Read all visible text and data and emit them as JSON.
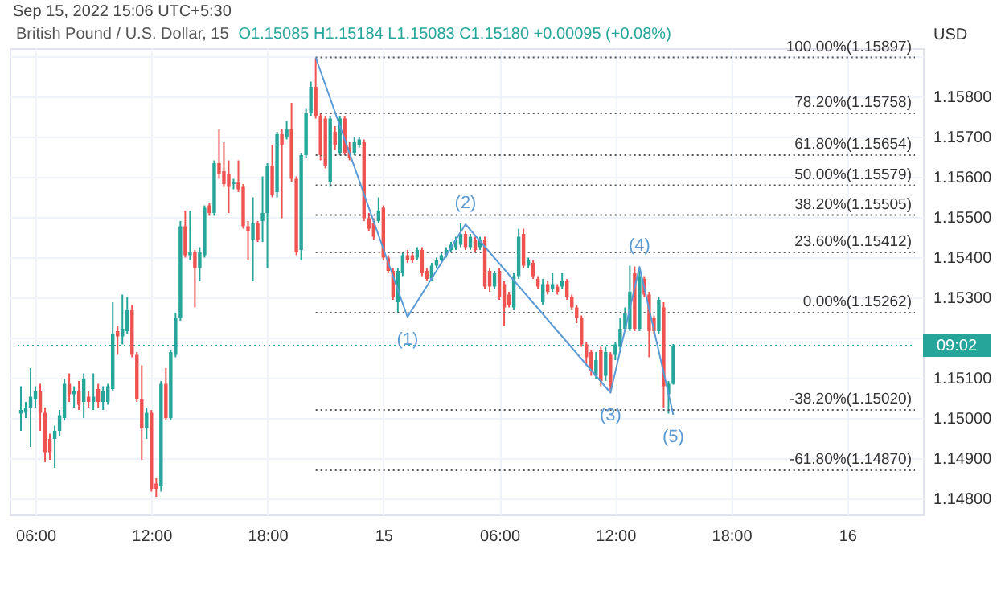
{
  "chart_data": {
    "type": "candlestick",
    "title": "British Pound / U.S. Dollar, 15",
    "subtitle": "O1.15085 H1.15184 L1.15083 C1.15180 +0.00095 (+0.08%)",
    "ylabel": "USD",
    "annotations": [
      "Sep 15, 2022 15:06 UTC+5:30",
      "09:02",
      {
        "text": "(1)",
        "x": "2022-09-15T01:15",
        "y": 1.15251
      },
      {
        "text": "(2)",
        "x": "2022-09-15T04:15",
        "y": 1.15482
      },
      {
        "text": "(3)",
        "x": "2022-09-15T11:45",
        "y": 1.15063
      },
      {
        "text": "(4)",
        "x": "2022-09-15T13:15",
        "y": 1.15376
      },
      {
        "text": "(5)",
        "x": "2022-09-15T15:00",
        "y": 1.15008
      }
    ],
    "x": [
      "2022-09-14T05:15",
      "2022-09-14T05:30",
      "2022-09-14T05:45",
      "2022-09-14T06:00",
      "2022-09-14T06:15",
      "2022-09-14T06:30",
      "2022-09-14T06:45",
      "2022-09-14T07:00",
      "2022-09-14T07:15",
      "2022-09-14T07:30",
      "2022-09-14T07:45",
      "2022-09-14T08:00",
      "2022-09-14T08:15",
      "2022-09-14T08:30",
      "2022-09-14T08:45",
      "2022-09-14T09:00",
      "2022-09-14T09:15",
      "2022-09-14T09:30",
      "2022-09-14T09:45",
      "2022-09-14T10:00",
      "2022-09-14T10:15",
      "2022-09-14T10:30",
      "2022-09-14T10:45",
      "2022-09-14T11:00",
      "2022-09-14T11:15",
      "2022-09-14T11:30",
      "2022-09-14T11:45",
      "2022-09-14T12:00",
      "2022-09-14T12:15",
      "2022-09-14T12:30",
      "2022-09-14T12:45",
      "2022-09-14T13:00",
      "2022-09-14T13:15",
      "2022-09-14T13:30",
      "2022-09-14T13:45",
      "2022-09-14T14:00",
      "2022-09-14T14:15",
      "2022-09-14T14:30",
      "2022-09-14T14:45",
      "2022-09-14T15:00",
      "2022-09-14T15:15",
      "2022-09-14T15:30",
      "2022-09-14T15:45",
      "2022-09-14T16:00",
      "2022-09-14T16:15",
      "2022-09-14T16:30",
      "2022-09-14T16:45",
      "2022-09-14T17:00",
      "2022-09-14T17:15",
      "2022-09-14T17:30",
      "2022-09-14T17:45",
      "2022-09-14T18:00",
      "2022-09-14T18:15",
      "2022-09-14T18:30",
      "2022-09-14T18:45",
      "2022-09-14T19:00",
      "2022-09-14T19:15",
      "2022-09-14T19:30",
      "2022-09-14T19:45",
      "2022-09-14T20:00",
      "2022-09-14T20:15",
      "2022-09-14T20:30",
      "2022-09-14T20:45",
      "2022-09-14T21:00",
      "2022-09-14T21:15",
      "2022-09-14T21:30",
      "2022-09-14T21:45",
      "2022-09-14T22:00",
      "2022-09-14T22:15",
      "2022-09-14T22:30",
      "2022-09-14T22:45",
      "2022-09-14T23:00",
      "2022-09-14T23:15",
      "2022-09-14T23:30",
      "2022-09-14T23:45",
      "2022-09-15T00:00",
      "2022-09-15T00:15",
      "2022-09-15T00:30",
      "2022-09-15T00:45",
      "2022-09-15T01:00",
      "2022-09-15T01:15",
      "2022-09-15T01:30",
      "2022-09-15T01:45",
      "2022-09-15T02:00",
      "2022-09-15T02:15",
      "2022-09-15T02:30",
      "2022-09-15T02:45",
      "2022-09-15T03:00",
      "2022-09-15T03:15",
      "2022-09-15T03:30",
      "2022-09-15T03:45",
      "2022-09-15T04:00",
      "2022-09-15T04:15",
      "2022-09-15T04:30",
      "2022-09-15T04:45",
      "2022-09-15T05:00",
      "2022-09-15T05:15",
      "2022-09-15T05:30",
      "2022-09-15T05:45",
      "2022-09-15T06:00",
      "2022-09-15T06:15",
      "2022-09-15T06:30",
      "2022-09-15T06:45",
      "2022-09-15T07:00",
      "2022-09-15T07:15",
      "2022-09-15T07:30",
      "2022-09-15T07:45",
      "2022-09-15T08:00",
      "2022-09-15T08:15",
      "2022-09-15T08:30",
      "2022-09-15T08:45",
      "2022-09-15T09:00",
      "2022-09-15T09:15",
      "2022-09-15T09:30",
      "2022-09-15T09:45",
      "2022-09-15T10:00",
      "2022-09-15T10:15",
      "2022-09-15T10:30",
      "2022-09-15T10:45",
      "2022-09-15T11:00",
      "2022-09-15T11:15",
      "2022-09-15T11:30",
      "2022-09-15T11:45",
      "2022-09-15T12:00",
      "2022-09-15T12:15",
      "2022-09-15T12:30",
      "2022-09-15T12:45",
      "2022-09-15T13:00",
      "2022-09-15T13:15",
      "2022-09-15T13:30",
      "2022-09-15T13:45",
      "2022-09-15T14:00",
      "2022-09-15T14:15",
      "2022-09-15T14:30",
      "2022-09-15T14:45",
      "2022-09-15T15:00"
    ],
    "ohlc": [
      [
        1.15011,
        1.15079,
        1.14968,
        1.1502
      ],
      [
        1.15013,
        1.1504,
        1.15,
        1.15026
      ],
      [
        1.15026,
        1.15124,
        1.14928,
        1.15053
      ],
      [
        1.15046,
        1.15079,
        1.15026,
        1.15066
      ],
      [
        1.15066,
        1.15085,
        1.14968,
        1.15013
      ],
      [
        1.15013,
        1.15026,
        1.1489,
        1.14915
      ],
      [
        1.14948,
        1.14961,
        1.14896,
        1.14915
      ],
      [
        1.14948,
        1.14981,
        1.14876,
        1.14968
      ],
      [
        1.14968,
        1.1502,
        1.14955,
        1.15007
      ],
      [
        1.15,
        1.15098,
        1.14994,
        1.15085
      ],
      [
        1.15085,
        1.15111,
        1.1504,
        1.15059
      ],
      [
        1.15059,
        1.15079,
        1.15026,
        1.15066
      ],
      [
        1.15066,
        1.15092,
        1.1502,
        1.15033
      ],
      [
        1.1504,
        1.15111,
        1.15,
        1.15098
      ],
      [
        1.15053,
        1.15066,
        1.15026,
        1.1504
      ],
      [
        1.1504,
        1.15111,
        1.1502,
        1.15053
      ],
      [
        1.15072,
        1.15085,
        1.15026,
        1.1504
      ],
      [
        1.1504,
        1.15079,
        1.1502,
        1.15066
      ],
      [
        1.1504,
        1.15085,
        1.15033,
        1.15079
      ],
      [
        1.15072,
        1.15288,
        1.15066,
        1.15209
      ],
      [
        1.15216,
        1.15229,
        1.15157,
        1.15203
      ],
      [
        1.15203,
        1.15307,
        1.15183,
        1.15222
      ],
      [
        1.15216,
        1.15301,
        1.15209,
        1.15268
      ],
      [
        1.15268,
        1.15281,
        1.15151,
        1.15157
      ],
      [
        1.15157,
        1.15164,
        1.1504,
        1.15046
      ],
      [
        1.15046,
        1.15131,
        1.14896,
        1.14974
      ],
      [
        1.14974,
        1.15026,
        1.14948,
        1.15013
      ],
      [
        1.15013,
        1.1502,
        1.14817,
        1.14824
      ],
      [
        1.14837,
        1.1485,
        1.14804,
        1.14824
      ],
      [
        1.1483,
        1.15092,
        1.14817,
        1.15085
      ],
      [
        1.15085,
        1.15124,
        1.14994,
        1.15
      ],
      [
        1.15,
        1.1517,
        1.14994,
        1.15164
      ],
      [
        1.15157,
        1.15262,
        1.15151,
        1.15249
      ],
      [
        1.15249,
        1.1549,
        1.15242,
        1.15477
      ],
      [
        1.15477,
        1.15516,
        1.15399,
        1.15405
      ],
      [
        1.15405,
        1.15516,
        1.15392,
        1.15412
      ],
      [
        1.15412,
        1.15418,
        1.15275,
        1.15373
      ],
      [
        1.15373,
        1.15425,
        1.1534,
        1.15412
      ],
      [
        1.15405,
        1.15529,
        1.15399,
        1.15523
      ],
      [
        1.15529,
        1.15536,
        1.15503,
        1.1551
      ],
      [
        1.1551,
        1.15641,
        1.15503,
        1.15634
      ],
      [
        1.15634,
        1.15719,
        1.15595,
        1.15608
      ],
      [
        1.15614,
        1.15686,
        1.15575,
        1.15582
      ],
      [
        1.15608,
        1.15641,
        1.1551,
        1.15575
      ],
      [
        1.15582,
        1.15595,
        1.15569,
        1.15588
      ],
      [
        1.15588,
        1.15641,
        1.15562,
        1.15569
      ],
      [
        1.15575,
        1.15582,
        1.15471,
        1.15477
      ],
      [
        1.15477,
        1.1549,
        1.15392,
        1.15464
      ],
      [
        1.15444,
        1.15549,
        1.1534,
        1.15484
      ],
      [
        1.15484,
        1.1549,
        1.15438,
        1.15444
      ],
      [
        1.1549,
        1.15601,
        1.15438,
        1.1551
      ],
      [
        1.1551,
        1.15634,
        1.15373,
        1.15628
      ],
      [
        1.15628,
        1.1568,
        1.15549,
        1.15556
      ],
      [
        1.15562,
        1.15712,
        1.15549,
        1.15706
      ],
      [
        1.15706,
        1.15719,
        1.15497,
        1.1568
      ],
      [
        1.15699,
        1.15739,
        1.15693,
        1.15719
      ],
      [
        1.15719,
        1.15784,
        1.15588,
        1.15595
      ],
      [
        1.15595,
        1.15601,
        1.15405,
        1.15412
      ],
      [
        1.15418,
        1.1566,
        1.15392,
        1.15654
      ],
      [
        1.15654,
        1.15771,
        1.15647,
        1.15758
      ],
      [
        1.15758,
        1.15837,
        1.15752,
        1.15824
      ],
      [
        1.15824,
        1.15895,
        1.15745,
        1.15752
      ],
      [
        1.15752,
        1.15758,
        1.15641,
        1.15654
      ],
      [
        1.15745,
        1.15752,
        1.15621,
        1.15628
      ],
      [
        1.15588,
        1.15752,
        1.15575,
        1.15745
      ],
      [
        1.15712,
        1.15726,
        1.15667,
        1.1568
      ],
      [
        1.1566,
        1.15752,
        1.15654,
        1.15745
      ],
      [
        1.15745,
        1.15752,
        1.15654,
        1.1566
      ],
      [
        1.15673,
        1.15686,
        1.15641,
        1.15647
      ],
      [
        1.1566,
        1.15699,
        1.15654,
        1.15686
      ],
      [
        1.1568,
        1.15699,
        1.15673,
        1.15693
      ],
      [
        1.15686,
        1.15693,
        1.1549,
        1.15497
      ],
      [
        1.15497,
        1.1551,
        1.15464,
        1.15471
      ],
      [
        1.15484,
        1.15497,
        1.15444,
        1.15451
      ],
      [
        1.1549,
        1.15549,
        1.15484,
        1.15516
      ],
      [
        1.15523,
        1.15529,
        1.15392,
        1.15399
      ],
      [
        1.15399,
        1.15405,
        1.1536,
        1.15366
      ],
      [
        1.15366,
        1.15373,
        1.15294,
        1.15301
      ],
      [
        1.15288,
        1.15373,
        1.15262,
        1.15366
      ],
      [
        1.1536,
        1.15412,
        1.15353,
        1.15405
      ],
      [
        1.15405,
        1.15418,
        1.15386,
        1.15392
      ],
      [
        1.15405,
        1.15412,
        1.15386,
        1.15392
      ],
      [
        1.15399,
        1.15425,
        1.15392,
        1.15418
      ],
      [
        1.15418,
        1.15425,
        1.15353,
        1.1536
      ],
      [
        1.15366,
        1.15373,
        1.1534,
        1.15346
      ],
      [
        1.15346,
        1.15386,
        1.1534,
        1.15379
      ],
      [
        1.15379,
        1.15399,
        1.15373,
        1.15392
      ],
      [
        1.15392,
        1.15412,
        1.15386,
        1.15405
      ],
      [
        1.15405,
        1.15425,
        1.15399,
        1.15418
      ],
      [
        1.15418,
        1.15438,
        1.15412,
        1.15431
      ],
      [
        1.15425,
        1.15451,
        1.15418,
        1.15444
      ],
      [
        1.15431,
        1.15484,
        1.15425,
        1.15458
      ],
      [
        1.15458,
        1.15464,
        1.15418,
        1.15425
      ],
      [
        1.15425,
        1.15458,
        1.15418,
        1.15451
      ],
      [
        1.15444,
        1.15451,
        1.15412,
        1.15418
      ],
      [
        1.15425,
        1.15451,
        1.15418,
        1.15444
      ],
      [
        1.15444,
        1.15451,
        1.1532,
        1.15327
      ],
      [
        1.15366,
        1.15373,
        1.15314,
        1.15327
      ],
      [
        1.15327,
        1.15366,
        1.1532,
        1.1536
      ],
      [
        1.15366,
        1.15373,
        1.15294,
        1.15301
      ],
      [
        1.15333,
        1.1534,
        1.15229,
        1.15275
      ],
      [
        1.15307,
        1.15314,
        1.15275,
        1.15281
      ],
      [
        1.15275,
        1.1536,
        1.15268,
        1.15353
      ],
      [
        1.15353,
        1.15471,
        1.15346,
        1.15451
      ],
      [
        1.15458,
        1.15471,
        1.15373,
        1.15379
      ],
      [
        1.15379,
        1.15399,
        1.15373,
        1.15392
      ],
      [
        1.15386,
        1.15392,
        1.15346,
        1.15353
      ],
      [
        1.15346,
        1.15353,
        1.1532,
        1.15327
      ],
      [
        1.15288,
        1.15346,
        1.15281,
        1.15333
      ],
      [
        1.15333,
        1.1534,
        1.15307,
        1.15314
      ],
      [
        1.1532,
        1.1536,
        1.15314,
        1.15333
      ],
      [
        1.15327,
        1.15333,
        1.15307,
        1.15314
      ],
      [
        1.15327,
        1.1536,
        1.1532,
        1.1534
      ],
      [
        1.1534,
        1.15346,
        1.15294,
        1.15301
      ],
      [
        1.15301,
        1.15307,
        1.15268,
        1.15275
      ],
      [
        1.15275,
        1.15281,
        1.15236,
        1.15249
      ],
      [
        1.15249,
        1.15255,
        1.15177,
        1.15183
      ],
      [
        1.15183,
        1.1519,
        1.15131,
        1.15151
      ],
      [
        1.15164,
        1.1517,
        1.15105,
        1.15118
      ],
      [
        1.15105,
        1.15164,
        1.15098,
        1.15144
      ],
      [
        1.1517,
        1.15177,
        1.15079,
        1.15092
      ],
      [
        1.15105,
        1.15177,
        1.15092,
        1.15164
      ],
      [
        1.15157,
        1.15164,
        1.15063,
        1.15079
      ],
      [
        1.15157,
        1.1519,
        1.15144,
        1.15183
      ],
      [
        1.15177,
        1.15249,
        1.1517,
        1.15222
      ],
      [
        1.15222,
        1.15275,
        1.15216,
        1.15262
      ],
      [
        1.15222,
        1.15379,
        1.15216,
        1.15314
      ],
      [
        1.1536,
        1.15377,
        1.15216,
        1.15222
      ],
      [
        1.15222,
        1.15373,
        1.15216,
        1.15353
      ],
      [
        1.15346,
        1.15353,
        1.15301,
        1.15307
      ],
      [
        1.15307,
        1.15314,
        1.15151,
        1.15216
      ],
      [
        1.15249,
        1.15255,
        1.15209,
        1.15216
      ],
      [
        1.15216,
        1.15301,
        1.15209,
        1.15294
      ],
      [
        1.15275,
        1.15288,
        1.15026,
        1.15079
      ],
      [
        1.15059,
        1.15092,
        1.15011,
        1.15085
      ],
      [
        1.15085,
        1.15184,
        1.15083,
        1.1518
      ]
    ],
    "series": [
      {
        "type": "line",
        "color": "#5b9bd5",
        "x": [
          "2022-09-14T20:30",
          "2022-09-15T01:15",
          "2022-09-15T04:15",
          "2022-09-15T11:45",
          "2022-09-15T13:15",
          "2022-09-15T15:00"
        ],
        "values": [
          1.15897,
          1.15251,
          1.15482,
          1.15063,
          1.15376,
          1.15008
        ]
      }
    ],
    "xlim": [
      "2022-09-14T05:05",
      "2022-09-16T03:30"
    ],
    "ylim": [
      1.1476,
      1.1592
    ],
    "xticks": [
      {
        "value": "2022-09-14T06:00",
        "label": "06:00"
      },
      {
        "value": "2022-09-14T12:00",
        "label": "12:00"
      },
      {
        "value": "2022-09-14T18:00",
        "label": "18:00"
      },
      {
        "value": "2022-09-15T00:00",
        "label": "15"
      },
      {
        "value": "2022-09-15T06:00",
        "label": "06:00"
      },
      {
        "value": "2022-09-15T12:00",
        "label": "12:00"
      },
      {
        "value": "2022-09-15T18:00",
        "label": "18:00"
      },
      {
        "value": "2022-09-16T00:00",
        "label": "16"
      }
    ],
    "yticks": [
      {
        "value": 1.148,
        "label": "1.14800"
      },
      {
        "value": 1.149,
        "label": "1.14900"
      },
      {
        "value": 1.15,
        "label": "1.15000"
      },
      {
        "value": 1.151,
        "label": "1.15100"
      },
      {
        "value": 1.152,
        "label": null
      },
      {
        "value": 1.153,
        "label": "1.15300"
      },
      {
        "value": 1.154,
        "label": "1.15400"
      },
      {
        "value": 1.155,
        "label": "1.15500"
      },
      {
        "value": 1.156,
        "label": "1.15600"
      },
      {
        "value": 1.157,
        "label": "1.15700"
      },
      {
        "value": 1.158,
        "label": "1.15800"
      },
      {
        "value": 1.159,
        "label": null
      }
    ],
    "ref_lines": [
      {
        "axis": "y",
        "value": 1.15897,
        "label": "100.00%(1.15897)",
        "color": "#555555",
        "line_style": "dotted"
      },
      {
        "axis": "y",
        "value": 1.15758,
        "label": "78.20%(1.15758)",
        "color": "#555555",
        "line_style": "dotted"
      },
      {
        "axis": "y",
        "value": 1.15654,
        "label": "61.80%(1.15654)",
        "color": "#555555",
        "line_style": "dotted"
      },
      {
        "axis": "y",
        "value": 1.15579,
        "label": "50.00%(1.15579)",
        "color": "#555555",
        "line_style": "dotted"
      },
      {
        "axis": "y",
        "value": 1.15505,
        "label": "38.20%(1.15505)",
        "color": "#555555",
        "line_style": "dotted"
      },
      {
        "axis": "y",
        "value": 1.15412,
        "label": "23.60%(1.15412)",
        "color": "#555555",
        "line_style": "dotted"
      },
      {
        "axis": "y",
        "value": 1.15262,
        "label": "0.00%(1.15262)",
        "color": "#555555",
        "line_style": "dotted"
      },
      {
        "axis": "y",
        "value": 1.1502,
        "label": "-38.20%(1.15020)",
        "color": "#555555",
        "line_style": "dotted"
      },
      {
        "axis": "y",
        "value": 1.1487,
        "label": "-61.80%(1.14870)",
        "color": "#555555",
        "line_style": "dotted"
      },
      {
        "axis": "y",
        "value": 1.1518,
        "color": "#26a69a",
        "line_style": "dotted"
      }
    ],
    "grid": true
  }
}
